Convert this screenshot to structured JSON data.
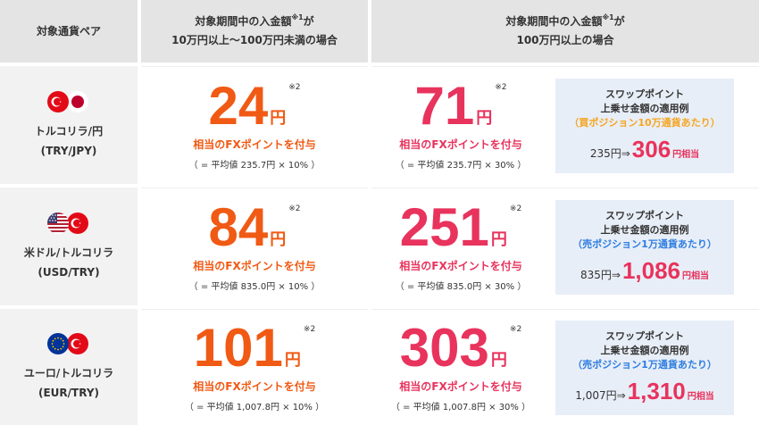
{
  "header": {
    "col_pair": "対象通貨ペア",
    "col_low_line1": "対象期間中の入金額",
    "col_low_sup": "※1",
    "col_low_line1_end": "が",
    "col_low_line2": "10万円以上〜100万円未満の場合",
    "col_high_line1": "対象期間中の入金額",
    "col_high_sup": "※1",
    "col_high_line1_end": "が",
    "col_high_line2": "100万円以上の場合"
  },
  "common": {
    "unit": "円",
    "note": "※2",
    "desc": "相当のFXポイントを付与",
    "box_title1": "スワップポイント",
    "box_title2": "上乗せ金額の適用例",
    "arrow": "⇒",
    "suffix": "円相当"
  },
  "rows": [
    {
      "pair_name": "トルコリラ/円",
      "pair_code": "(TRY/JPY)",
      "flags": [
        "turkey-flag-icon",
        "japan-flag-icon"
      ],
      "low_value": "24",
      "low_calc": "（ =  平均値 235.7円 × 10% ）",
      "high_value": "71",
      "high_calc": "（ = 平均値 235.7円 × 30% ）",
      "box_condition": "（買ポジション10万通貨あたり）",
      "box_condition_color": "#f5a623",
      "box_base": "235円",
      "box_result": "306"
    },
    {
      "pair_name": "米ドル/トルコリラ",
      "pair_code": "(USD/TRY)",
      "flags": [
        "usa-flag-icon",
        "turkey-flag-icon"
      ],
      "low_value": "84",
      "low_calc": "（ =  平均値 835.0円 × 10% ）",
      "high_value": "251",
      "high_calc": "（ = 平均値 835.0円 × 30% ）",
      "box_condition": "（売ポジション1万通貨あたり）",
      "box_condition_color": "#2e7de1",
      "box_base": "835円",
      "box_result": "1,086"
    },
    {
      "pair_name": "ユーロ/トルコリラ",
      "pair_code": "(EUR/TRY)",
      "flags": [
        "eu-flag-icon",
        "turkey-flag-icon"
      ],
      "low_value": "101",
      "low_calc": "（ =  平均値 1,007.8円 × 10% ）",
      "high_value": "303",
      "high_calc": "（ = 平均値 1,007.8円 × 30% ）",
      "box_condition": "（売ポジション1万通貨あたり）",
      "box_condition_color": "#2e7de1",
      "box_base": "1,007円",
      "box_result": "1,310"
    }
  ]
}
